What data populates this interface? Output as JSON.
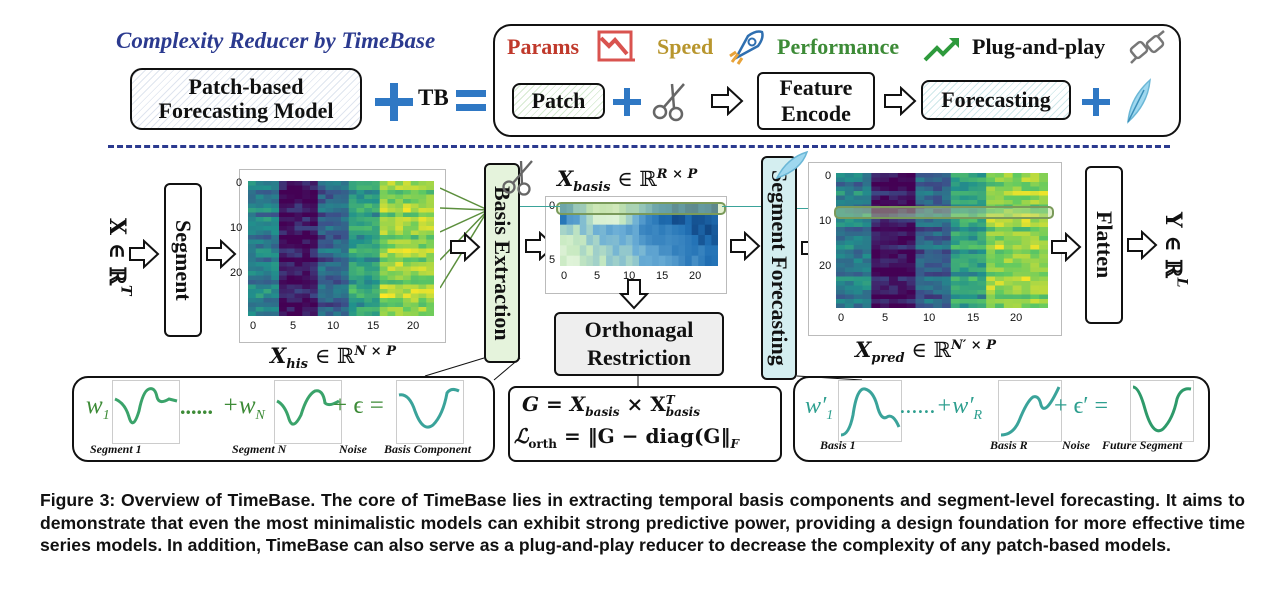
{
  "header": {
    "reducer_title": "Complexity Reducer by TimeBase",
    "patch_model": "Patch-based Forecasting Model",
    "tb": "TB",
    "params": "Params",
    "speed": "Speed",
    "performance": "Performance",
    "plug": "Plug-and-play",
    "patch": "Patch",
    "feature_encode": "Feature Encode",
    "forecasting": "Forecasting"
  },
  "flow": {
    "x_var": "X ∈ ℝ",
    "x_sup": "T",
    "segment": "Segment",
    "basis_extraction": "Basis Extraction",
    "segment_forecasting": "Segment Forecasting",
    "flatten": "Flatten",
    "y_var": "Y ∈ ℝ",
    "y_sup": "L",
    "orth_line1": "Orthonagal",
    "orth_line2": "Restriction"
  },
  "labels": {
    "x_his": "X",
    "x_his_sub": "his",
    "x_his_rest": " ∈ ℝ",
    "x_his_sup": "N × P",
    "x_basis": "X",
    "x_basis_sub": "basis",
    "x_basis_rest": " ∈ ℝ",
    "x_basis_sup": "R × P",
    "x_pred": "X",
    "x_pred_sub": "pred",
    "x_pred_rest": " ∈ ℝ",
    "x_pred_sup": "N′ × P"
  },
  "heatmaps": {
    "his": {
      "x_ticks": [
        "0",
        "5",
        "10",
        "15",
        "20"
      ],
      "y_ticks": [
        "0",
        "10",
        "20"
      ]
    },
    "basis": {
      "x_ticks": [
        "0",
        "5",
        "10",
        "15",
        "20"
      ],
      "y_ticks": [
        "0",
        "5"
      ]
    },
    "pred": {
      "x_ticks": [
        "0",
        "5",
        "10",
        "15",
        "20"
      ],
      "y_ticks": [
        "0",
        "10",
        "20"
      ]
    },
    "colors": {
      "dark": "#3b0f6f",
      "mid": "#21918c",
      "light": "#fde725",
      "blue_dark": "#08306b",
      "blue_light": "#f7fcf0"
    }
  },
  "equations": {
    "left": {
      "w1": "w",
      "w1_sub": "1",
      "dots": "......",
      "plus_wn": "+w",
      "wn_sub": "N",
      "plus_eps": "+ ϵ =",
      "seg1": "Segment 1",
      "segN": "Segment N",
      "noise": "Noise",
      "basis_comp": "Basis Component"
    },
    "middle": {
      "line1_lhs": "G = X",
      "line1_sub": "basis",
      "line1_mid": " × X",
      "line1_sup": "T",
      "line1_sub2": "basis",
      "line2_l": "ℒ",
      "line2_sub": "orth",
      "line2_rhs": " = ‖G − diag(G‖",
      "line2_F": "F"
    },
    "right": {
      "w1": "w′",
      "w1_sub": "1",
      "dots": "......+w′",
      "wr_sub": "R",
      "plus_eps": "+ ϵ′ =",
      "basis1": "Basis 1",
      "basisR": "Basis R",
      "noise": "Noise",
      "future": "Future Segment"
    }
  },
  "caption": "Figure 3: Overview of TimeBase. The core of TimeBase lies in extracting temporal basis components and segment-level forecasting. It aims to demonstrate that even the most minimalistic models can exhibit strong predictive power, providing a design foundation for more effective time series models. In addition, TimeBase can also serve as a plug-and-play reducer to decrease the complexity of any patch-based models.",
  "colors": {
    "accent_blue": "#2f78c4",
    "red": "#c0392b",
    "gold": "#b8962e",
    "green": "#3d8b37",
    "navy": "#2b3a8f",
    "teal": "#3aa39a"
  }
}
